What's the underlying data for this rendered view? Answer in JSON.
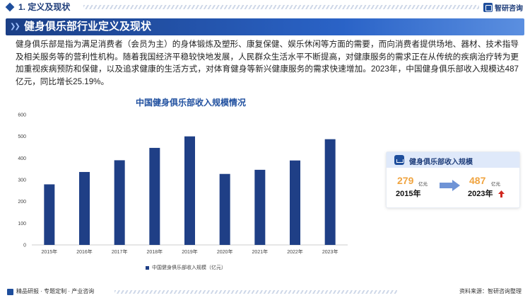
{
  "section": {
    "label": "1. 定义及现状"
  },
  "brand": {
    "name": "智研咨询"
  },
  "banner": {
    "title": "健身俱乐部行业定义及现状"
  },
  "paragraph": "健身俱乐部是指为满足消费者（会员为主）的身体锻炼及塑形、康复保健、娱乐休闲等方面的需要，而向消费者提供场地、器材、技术指导及相关服务等的营利性机构。随着我国经济平稳较快地发展，人民群众生活水平不断提高，对健康服务的需求正在从传统的疾病治疗转为更加重视疾病预防和保健，以及追求健康的生活方式，对体育健身等新兴健康服务的需求快速增加。2023年，中国健身俱乐部收入规模达487亿元，同比增长25.19%。",
  "chart_data": {
    "type": "bar",
    "title": "中国健身俱乐部收入规模情况",
    "categories": [
      "2015年",
      "2016年",
      "2017年",
      "2018年",
      "2019年",
      "2020年",
      "2021年",
      "2022年",
      "2023年"
    ],
    "series": [
      {
        "name": "中国健身俱乐部收入规模（亿元）",
        "values": [
          279,
          336,
          390,
          447,
          500,
          327,
          346,
          389,
          487
        ]
      }
    ],
    "ylim": [
      0,
      600
    ],
    "yticks": [
      "0",
      "100",
      "200",
      "300",
      "400",
      "500",
      "600"
    ],
    "grid": false,
    "legend": "bottom",
    "colors": {
      "bar": "#1f3f86"
    }
  },
  "card": {
    "title": "健身俱乐部收入规模",
    "start_value": "279",
    "start_unit": "亿元",
    "start_year": "2015年",
    "end_value": "487",
    "end_unit": "亿元",
    "end_year": "2023年"
  },
  "footer": {
    "left": "精品研报 · 专题定制 · 产业咨询",
    "right": "资料来源：智研咨询整理"
  }
}
